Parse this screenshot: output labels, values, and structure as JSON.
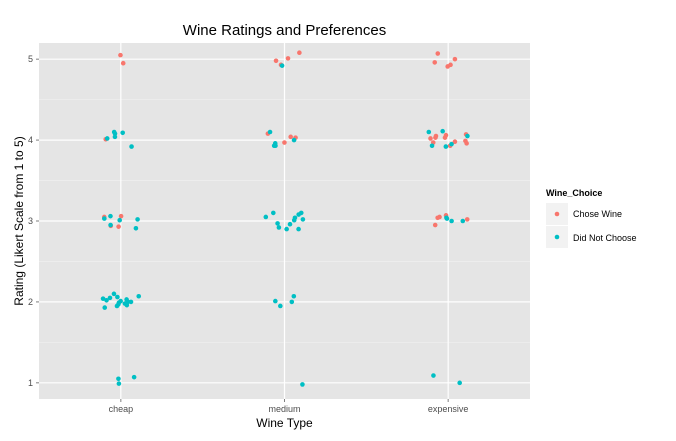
{
  "chart_data": {
    "type": "scatter",
    "title": "Wine Ratings and Preferences",
    "xlabel": "Wine Type",
    "ylabel": "Rating (Likert Scale from 1 to 5)",
    "categories": [
      "cheap",
      "medium",
      "expensive"
    ],
    "ylim": [
      0.8,
      5.2
    ],
    "yticks": [
      "1",
      "2",
      "3",
      "4",
      "5"
    ],
    "jitter_note_omitted": true,
    "grid": true,
    "legend": {
      "title": "Wine_Choice",
      "position": "right",
      "entries": [
        "Chose Wine",
        "Did Not Choose"
      ]
    },
    "colors": {
      "Chose Wine": "#F8766D",
      "Did Not Choose": "#00BFC4",
      "panel": "#E5E5E5",
      "grid": "#FFFFFF"
    },
    "series": [
      {
        "name": "Chose Wine",
        "points": [
          [
            "cheap",
            5.05
          ],
          [
            "cheap",
            4.95
          ],
          [
            "cheap",
            4.01
          ],
          [
            "cheap",
            2.94
          ],
          [
            "cheap",
            2.93
          ],
          [
            "cheap",
            3.06
          ],
          [
            "cheap",
            3.05
          ],
          [
            "medium",
            5.08
          ],
          [
            "medium",
            5.01
          ],
          [
            "medium",
            4.93
          ],
          [
            "medium",
            4.98
          ],
          [
            "medium",
            4.03
          ],
          [
            "medium",
            4.04
          ],
          [
            "medium",
            4.08
          ],
          [
            "medium",
            3.97
          ],
          [
            "expensive",
            5.07
          ],
          [
            "expensive",
            5.0
          ],
          [
            "expensive",
            4.96
          ],
          [
            "expensive",
            4.93
          ],
          [
            "expensive",
            4.91
          ],
          [
            "expensive",
            4.03
          ],
          [
            "expensive",
            4.02
          ],
          [
            "expensive",
            3.99
          ],
          [
            "expensive",
            3.96
          ],
          [
            "expensive",
            3.97
          ],
          [
            "expensive",
            4.06
          ],
          [
            "expensive",
            4.07
          ],
          [
            "expensive",
            4.05
          ],
          [
            "expensive",
            4.03
          ],
          [
            "expensive",
            3.93
          ],
          [
            "expensive",
            3.98
          ],
          [
            "expensive",
            3.05
          ],
          [
            "expensive",
            2.95
          ],
          [
            "expensive",
            3.02
          ],
          [
            "expensive",
            3.07
          ],
          [
            "expensive",
            3.04
          ]
        ]
      },
      {
        "name": "Did Not Choose",
        "points": [
          [
            "cheap",
            4.09
          ],
          [
            "cheap",
            4.1
          ],
          [
            "cheap",
            4.02
          ],
          [
            "cheap",
            3.92
          ],
          [
            "cheap",
            4.08
          ],
          [
            "cheap",
            4.04
          ],
          [
            "cheap",
            3.03
          ],
          [
            "cheap",
            3.02
          ],
          [
            "cheap",
            2.95
          ],
          [
            "cheap",
            2.91
          ],
          [
            "cheap",
            3.01
          ],
          [
            "cheap",
            3.06
          ],
          [
            "cheap",
            1.98
          ],
          [
            "cheap",
            1.95
          ],
          [
            "cheap",
            2.0
          ],
          [
            "cheap",
            1.96
          ],
          [
            "cheap",
            2.02
          ],
          [
            "cheap",
            2.05
          ],
          [
            "cheap",
            1.99
          ],
          [
            "cheap",
            1.93
          ],
          [
            "cheap",
            2.04
          ],
          [
            "cheap",
            2.06
          ],
          [
            "cheap",
            2.0
          ],
          [
            "cheap",
            2.03
          ],
          [
            "cheap",
            2.07
          ],
          [
            "cheap",
            2.1
          ],
          [
            "cheap",
            1.97
          ],
          [
            "cheap",
            2.01
          ],
          [
            "cheap",
            1.05
          ],
          [
            "cheap",
            1.07
          ],
          [
            "cheap",
            0.99
          ],
          [
            "medium",
            4.92
          ],
          [
            "medium",
            3.96
          ],
          [
            "medium",
            3.93
          ],
          [
            "medium",
            4.0
          ],
          [
            "medium",
            4.1
          ],
          [
            "medium",
            3.93
          ],
          [
            "medium",
            3.04
          ],
          [
            "medium",
            2.9
          ],
          [
            "medium",
            3.02
          ],
          [
            "medium",
            3.1
          ],
          [
            "medium",
            3.08
          ],
          [
            "medium",
            3.01
          ],
          [
            "medium",
            2.96
          ],
          [
            "medium",
            2.9
          ],
          [
            "medium",
            3.05
          ],
          [
            "medium",
            2.97
          ],
          [
            "medium",
            2.92
          ],
          [
            "medium",
            3.1
          ],
          [
            "medium",
            1.95
          ],
          [
            "medium",
            2.0
          ],
          [
            "medium",
            2.07
          ],
          [
            "medium",
            2.01
          ],
          [
            "medium",
            0.98
          ],
          [
            "expensive",
            4.1
          ],
          [
            "expensive",
            4.11
          ],
          [
            "expensive",
            3.95
          ],
          [
            "expensive",
            3.92
          ],
          [
            "expensive",
            3.93
          ],
          [
            "expensive",
            4.05
          ],
          [
            "expensive",
            3.04
          ],
          [
            "expensive",
            3.0
          ],
          [
            "expensive",
            3.0
          ],
          [
            "expensive",
            3.03
          ],
          [
            "expensive",
            1.09
          ],
          [
            "expensive",
            1.0
          ]
        ]
      }
    ]
  }
}
